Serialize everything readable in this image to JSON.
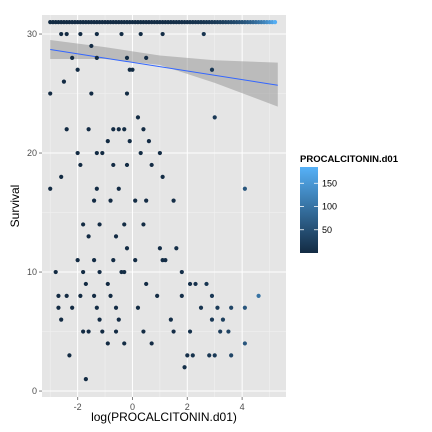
{
  "chart_data": {
    "type": "scatter",
    "xlabel": "log(PROCALCITONIN.d01)",
    "ylabel": "Survival",
    "xlim": [
      -3.3,
      5.6
    ],
    "ylim": [
      -0.5,
      31.6
    ],
    "x_ticks": [
      -2,
      0,
      2,
      4
    ],
    "y_ticks": [
      0,
      10,
      20,
      30
    ],
    "x_tick_labels": [
      "-2",
      "0",
      "2",
      "4"
    ],
    "y_tick_labels": [
      "0",
      "10",
      "20",
      "30"
    ],
    "grid": true,
    "background_color": "#e5e5e5",
    "legend": {
      "title": "PROCALCITONIN.d01",
      "position": "right",
      "breaks": [
        50,
        100,
        150
      ],
      "break_labels": [
        "50",
        "100",
        "150"
      ],
      "range": [
        0,
        185
      ],
      "color_low": "#132b43",
      "color_high": "#56b1f7"
    },
    "smooth": {
      "method": "linear",
      "line_color": "#3366ff",
      "band_color": "#999999",
      "x_range": [
        -3.0,
        5.3
      ],
      "fit": [
        [
          -3.0,
          28.7
        ],
        [
          5.3,
          25.7
        ]
      ],
      "band_upper": [
        [
          -3.0,
          29.5
        ],
        [
          -1.0,
          28.9
        ],
        [
          1.0,
          28.2
        ],
        [
          3.0,
          27.8
        ],
        [
          5.3,
          27.6
        ]
      ],
      "band_lower": [
        [
          -3.0,
          27.9
        ],
        [
          -1.0,
          27.9
        ],
        [
          1.0,
          27.4
        ],
        [
          3.0,
          25.9
        ],
        [
          5.3,
          23.9
        ]
      ]
    },
    "points": [
      [
        -3.0,
        31,
        0.3
      ],
      [
        -2.9,
        31,
        0.3
      ],
      [
        -2.8,
        31,
        0.4
      ],
      [
        -2.7,
        31,
        0.3
      ],
      [
        -2.6,
        31,
        0.5
      ],
      [
        -2.5,
        31,
        0.4
      ],
      [
        -2.4,
        31,
        0.3
      ],
      [
        -2.3,
        31,
        0.5
      ],
      [
        -2.2,
        31,
        0.4
      ],
      [
        -2.1,
        31,
        0.3
      ],
      [
        -2.0,
        31,
        0.5
      ],
      [
        -1.9,
        31,
        0.3
      ],
      [
        -1.8,
        31,
        0.4
      ],
      [
        -1.7,
        31,
        0.6
      ],
      [
        -1.6,
        31,
        0.3
      ],
      [
        -1.5,
        31,
        0.4
      ],
      [
        -1.4,
        31,
        0.5
      ],
      [
        -1.3,
        31,
        0.3
      ],
      [
        -1.2,
        31,
        0.4
      ],
      [
        -1.1,
        31,
        0.3
      ],
      [
        -1.0,
        31,
        0.5
      ],
      [
        -0.9,
        31,
        0.4
      ],
      [
        -0.8,
        31,
        0.3
      ],
      [
        -0.7,
        31,
        0.6
      ],
      [
        -0.6,
        31,
        0.5
      ],
      [
        -0.5,
        31,
        0.6
      ],
      [
        -0.4,
        31,
        0.4
      ],
      [
        -0.3,
        31,
        0.7
      ],
      [
        -0.2,
        31,
        0.8
      ],
      [
        -0.1,
        31,
        0.9
      ],
      [
        0.0,
        31,
        1
      ],
      [
        0.1,
        31,
        1.1
      ],
      [
        0.2,
        31,
        1.1
      ],
      [
        0.3,
        31,
        1.2
      ],
      [
        0.4,
        31,
        1.3
      ],
      [
        0.5,
        31,
        1.6
      ],
      [
        0.6,
        31,
        1.8
      ],
      [
        0.7,
        31,
        1.8
      ],
      [
        0.8,
        31,
        2.2
      ],
      [
        0.9,
        31,
        2.5
      ],
      [
        1.0,
        31,
        2.7
      ],
      [
        1.1,
        31,
        3
      ],
      [
        1.2,
        31,
        3.3
      ],
      [
        1.3,
        31,
        3.7
      ],
      [
        1.4,
        31,
        4
      ],
      [
        1.5,
        31,
        4.5
      ],
      [
        1.6,
        31,
        5
      ],
      [
        1.7,
        31,
        5.5
      ],
      [
        1.8,
        31,
        6
      ],
      [
        1.9,
        31,
        6.7
      ],
      [
        2.0,
        31,
        7.4
      ],
      [
        2.1,
        31,
        8.2
      ],
      [
        2.2,
        31,
        9
      ],
      [
        2.3,
        31,
        10
      ],
      [
        2.4,
        31,
        11
      ],
      [
        2.5,
        31,
        12
      ],
      [
        2.6,
        31,
        13.5
      ],
      [
        2.7,
        31,
        15
      ],
      [
        2.8,
        31,
        16.4
      ],
      [
        2.9,
        31,
        18
      ],
      [
        3.0,
        31,
        20
      ],
      [
        3.1,
        31,
        22
      ],
      [
        3.2,
        31,
        24.5
      ],
      [
        3.3,
        31,
        27
      ],
      [
        3.4,
        31,
        30
      ],
      [
        3.5,
        31,
        33
      ],
      [
        3.6,
        31,
        36.6
      ],
      [
        3.7,
        31,
        40
      ],
      [
        3.8,
        31,
        44.7
      ],
      [
        3.9,
        31,
        49
      ],
      [
        4.0,
        31,
        54.6
      ],
      [
        4.1,
        31,
        60
      ],
      [
        4.2,
        31,
        66.7
      ],
      [
        4.3,
        31,
        73.7
      ],
      [
        4.4,
        31,
        81.5
      ],
      [
        4.5,
        31,
        90
      ],
      [
        4.6,
        31,
        99.5
      ],
      [
        4.7,
        31,
        110
      ],
      [
        4.8,
        31,
        121.5
      ],
      [
        4.9,
        31,
        134
      ],
      [
        5.0,
        31,
        148
      ],
      [
        5.1,
        31,
        162
      ],
      [
        5.2,
        31,
        181
      ],
      [
        -2.6,
        30,
        0.5
      ],
      [
        -2.4,
        30,
        0.4
      ],
      [
        -1.9,
        30,
        0.5
      ],
      [
        -1.3,
        30,
        0.7
      ],
      [
        -0.4,
        30,
        0.7
      ],
      [
        0.3,
        30,
        1.3
      ],
      [
        1.1,
        30,
        3
      ],
      [
        2.6,
        30,
        13.5
      ],
      [
        -1.5,
        29,
        0.6
      ],
      [
        -1.3,
        28,
        0.7
      ],
      [
        -2.2,
        28,
        0.4
      ],
      [
        -0.2,
        28,
        0.8
      ],
      [
        0.5,
        28,
        1.6
      ],
      [
        -2.0,
        27,
        0.5
      ],
      [
        0,
        27,
        1
      ],
      [
        -0.1,
        27,
        0.9
      ],
      [
        -2.5,
        26,
        0.4
      ],
      [
        -1.5,
        25,
        0.6
      ],
      [
        -3.0,
        25,
        0.3
      ],
      [
        -0.2,
        25,
        0.8
      ],
      [
        2.9,
        27,
        18
      ],
      [
        3.0,
        23,
        20
      ],
      [
        0.2,
        23,
        1.2
      ],
      [
        -2.4,
        22,
        0.4
      ],
      [
        -1.6,
        22,
        0.6
      ],
      [
        -0.7,
        22,
        0.6
      ],
      [
        -0.5,
        22,
        0.6
      ],
      [
        -0.3,
        22,
        0.7
      ],
      [
        0.4,
        22,
        1.4
      ],
      [
        -2.0,
        20,
        0.5
      ],
      [
        -1.3,
        20,
        0.7
      ],
      [
        -1.1,
        20,
        0.4
      ],
      [
        -0.9,
        21,
        0.4
      ],
      [
        -0.1,
        21,
        0.9
      ],
      [
        0.3,
        20,
        1.3
      ],
      [
        0.6,
        21,
        1.8
      ],
      [
        1.0,
        20,
        2.7
      ],
      [
        -2.6,
        18,
        0.4
      ],
      [
        -1.9,
        19,
        0.5
      ],
      [
        -0.7,
        19,
        0.6
      ],
      [
        -0.2,
        19,
        0.8
      ],
      [
        0.7,
        19,
        1.9
      ],
      [
        -1.3,
        17,
        0.7
      ],
      [
        -0.5,
        17,
        0.6
      ],
      [
        1.1,
        18,
        3
      ],
      [
        -3.0,
        17,
        0.3
      ],
      [
        4.1,
        17,
        60
      ],
      [
        -1.4,
        16,
        0.6
      ],
      [
        -0.8,
        16,
        0.5
      ],
      [
        0.1,
        16,
        1.1
      ],
      [
        0.5,
        16,
        1.6
      ],
      [
        1.5,
        16,
        4.5
      ],
      [
        -1.8,
        14,
        0.5
      ],
      [
        -1.2,
        14,
        0.6
      ],
      [
        -0.3,
        14,
        0.7
      ],
      [
        0.4,
        14,
        1.4
      ],
      [
        -1.6,
        13,
        0.6
      ],
      [
        -0.6,
        13,
        0.6
      ],
      [
        -0.2,
        12,
        0.8
      ],
      [
        1.0,
        12,
        2.7
      ],
      [
        1.6,
        12,
        5
      ],
      [
        -2.0,
        11,
        0.5
      ],
      [
        -1.4,
        11,
        0.6
      ],
      [
        -0.7,
        11,
        0.6
      ],
      [
        0.1,
        11,
        1.1
      ],
      [
        1.2,
        11,
        3.3
      ],
      [
        1.1,
        11,
        3
      ],
      [
        -2.8,
        10,
        0.3
      ],
      [
        -1.8,
        10,
        0.5
      ],
      [
        -1.2,
        10,
        0.6
      ],
      [
        -0.4,
        10,
        0.7
      ],
      [
        -0.3,
        10,
        0.7
      ],
      [
        1.8,
        10,
        6
      ],
      [
        -1.7,
        9,
        0.5
      ],
      [
        -0.9,
        9,
        0.4
      ],
      [
        0.5,
        9,
        1.6
      ],
      [
        2.1,
        9,
        8.2
      ],
      [
        2.3,
        9,
        10
      ],
      [
        2.7,
        9,
        15
      ],
      [
        -2.7,
        8,
        0.3
      ],
      [
        -2.4,
        8,
        0.4
      ],
      [
        -1.9,
        8,
        0.5
      ],
      [
        -1.4,
        8,
        0.6
      ],
      [
        -0.8,
        8,
        0.5
      ],
      [
        0.9,
        8,
        2.5
      ],
      [
        1.8,
        8,
        6
      ],
      [
        2.9,
        8,
        18
      ],
      [
        4.6,
        8,
        99
      ],
      [
        -2.7,
        7,
        0.3
      ],
      [
        -2.2,
        7,
        0.4
      ],
      [
        -1.3,
        7,
        0.7
      ],
      [
        -0.6,
        7,
        0.6
      ],
      [
        0.2,
        7,
        1.2
      ],
      [
        2.5,
        7,
        12
      ],
      [
        3.1,
        7,
        22
      ],
      [
        3.6,
        7,
        36
      ],
      [
        4.1,
        7,
        60
      ],
      [
        -2.6,
        6,
        0.4
      ],
      [
        -1.2,
        6,
        0.6
      ],
      [
        -0.5,
        6,
        0.6
      ],
      [
        1.4,
        6,
        4
      ],
      [
        2.9,
        6,
        18
      ],
      [
        3.3,
        6,
        27
      ],
      [
        -1.8,
        5,
        0.5
      ],
      [
        -1.6,
        5,
        0.6
      ],
      [
        -1.1,
        5,
        0.4
      ],
      [
        -0.6,
        5,
        0.6
      ],
      [
        0.4,
        5,
        1.4
      ],
      [
        1.5,
        5,
        4.5
      ],
      [
        2.1,
        5,
        8.2
      ],
      [
        3.2,
        5,
        24
      ],
      [
        3.5,
        5,
        33
      ],
      [
        -0.9,
        4,
        0.4
      ],
      [
        -0.3,
        4,
        0.7
      ],
      [
        0.7,
        4,
        2
      ],
      [
        4.1,
        4,
        60
      ],
      [
        -2.3,
        3,
        0.4
      ],
      [
        2.0,
        3,
        7.4
      ],
      [
        2.2,
        3,
        9
      ],
      [
        2.8,
        3,
        16
      ],
      [
        3.0,
        3,
        20
      ],
      [
        3.6,
        3,
        36
      ],
      [
        1.9,
        2,
        6.7
      ],
      [
        -1.7,
        1,
        0.5
      ]
    ]
  }
}
